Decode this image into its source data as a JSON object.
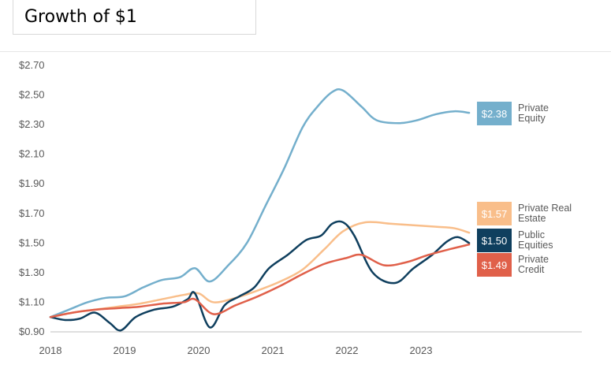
{
  "title": "Growth  of $1",
  "chart_data": {
    "type": "line",
    "title": "Growth  of $1",
    "xlabel": "",
    "ylabel": "",
    "ylim": [
      0.9,
      2.7
    ],
    "xlim": [
      2018,
      2024.3
    ],
    "y_ticks": [
      "$2.70",
      "$2.50",
      "$2.30",
      "$2.10",
      "$1.90",
      "$1.70",
      "$1.50",
      "$1.30",
      "$1.10",
      "$0.90"
    ],
    "y_tick_values": [
      2.7,
      2.5,
      2.3,
      2.1,
      1.9,
      1.7,
      1.5,
      1.3,
      1.1,
      0.9
    ],
    "x_ticks": [
      "2018",
      "2019",
      "2020",
      "2021",
      "2022",
      "2023"
    ],
    "x_tick_values": [
      2018,
      2019,
      2020,
      2021,
      2022,
      2023
    ],
    "grid": false,
    "series": [
      {
        "name": "Private Equity",
        "name_lines": [
          "Private",
          "Equity"
        ],
        "color": "#74afcc",
        "end_label": "$2.38",
        "x": [
          2018.0,
          2018.25,
          2018.5,
          2018.75,
          2019.0,
          2019.25,
          2019.5,
          2019.75,
          2019.95,
          2020.15,
          2020.4,
          2020.65,
          2020.9,
          2021.15,
          2021.4,
          2021.6,
          2021.8,
          2021.95,
          2022.2,
          2022.4,
          2022.7,
          2022.95,
          2023.2,
          2023.45,
          2023.65
        ],
        "values": [
          1.0,
          1.05,
          1.1,
          1.13,
          1.14,
          1.2,
          1.25,
          1.27,
          1.33,
          1.24,
          1.35,
          1.5,
          1.75,
          2.0,
          2.28,
          2.42,
          2.52,
          2.53,
          2.42,
          2.33,
          2.31,
          2.33,
          2.37,
          2.39,
          2.38
        ]
      },
      {
        "name": "Private Real Estate",
        "name_lines": [
          "Private Real",
          "Estate"
        ],
        "color": "#f9be8a",
        "end_label": "$1.57",
        "x": [
          2018.0,
          2018.3,
          2018.6,
          2018.9,
          2019.2,
          2019.5,
          2019.8,
          2020.0,
          2020.2,
          2020.5,
          2020.8,
          2021.1,
          2021.4,
          2021.7,
          2021.95,
          2022.25,
          2022.6,
          2022.9,
          2023.2,
          2023.45,
          2023.65
        ],
        "values": [
          1.0,
          1.03,
          1.05,
          1.07,
          1.09,
          1.12,
          1.15,
          1.16,
          1.1,
          1.13,
          1.18,
          1.24,
          1.32,
          1.46,
          1.58,
          1.64,
          1.63,
          1.62,
          1.61,
          1.6,
          1.57
        ]
      },
      {
        "name": "Public Equities",
        "name_lines": [
          "Public",
          "Equities"
        ],
        "color": "#0f3f5e",
        "end_label": "$1.50",
        "x": [
          2018.0,
          2018.2,
          2018.4,
          2018.6,
          2018.8,
          2018.95,
          2019.15,
          2019.4,
          2019.65,
          2019.85,
          2019.95,
          2020.15,
          2020.35,
          2020.55,
          2020.75,
          2020.95,
          2021.2,
          2021.45,
          2021.65,
          2021.8,
          2021.95,
          2022.1,
          2022.35,
          2022.65,
          2022.9,
          2023.15,
          2023.35,
          2023.5,
          2023.65
        ],
        "values": [
          1.0,
          0.98,
          0.99,
          1.03,
          0.96,
          0.91,
          1.0,
          1.05,
          1.07,
          1.12,
          1.16,
          0.93,
          1.08,
          1.14,
          1.2,
          1.33,
          1.42,
          1.52,
          1.55,
          1.63,
          1.64,
          1.55,
          1.3,
          1.23,
          1.33,
          1.42,
          1.51,
          1.54,
          1.5
        ]
      },
      {
        "name": "Private Credit",
        "name_lines": [
          "Private",
          "Credit"
        ],
        "color": "#e0604a",
        "end_label": "$1.49",
        "x": [
          2018.0,
          2018.3,
          2018.6,
          2018.9,
          2019.2,
          2019.5,
          2019.8,
          2019.95,
          2020.2,
          2020.5,
          2020.8,
          2021.1,
          2021.4,
          2021.7,
          2022.0,
          2022.2,
          2022.5,
          2022.8,
          2023.1,
          2023.4,
          2023.65
        ],
        "values": [
          1.0,
          1.03,
          1.05,
          1.06,
          1.07,
          1.09,
          1.1,
          1.12,
          1.02,
          1.08,
          1.14,
          1.21,
          1.29,
          1.36,
          1.4,
          1.42,
          1.35,
          1.37,
          1.42,
          1.46,
          1.49
        ]
      }
    ]
  }
}
